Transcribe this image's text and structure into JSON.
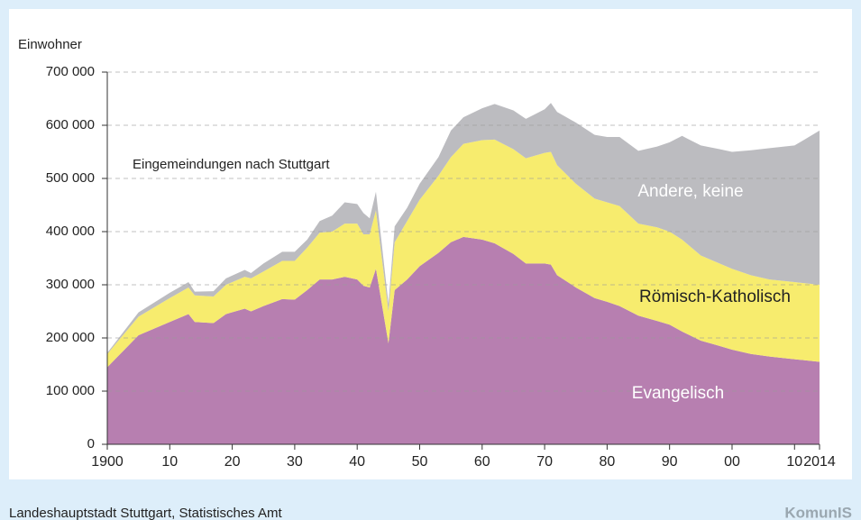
{
  "chart_data": {
    "type": "stacked_area",
    "y_label": "Einwohner",
    "annotation": "Eingemeindungen nach Stuttgart",
    "source": "Landeshauptstadt Stuttgart, Statistisches Amt",
    "logo": "KomunIS",
    "x": [
      1900,
      1905,
      1910,
      1913,
      1914,
      1917,
      1919,
      1922,
      1923,
      1925,
      1928,
      1930,
      1932,
      1934,
      1936,
      1938,
      1940,
      1941,
      1942,
      1943,
      1945,
      1946,
      1948,
      1950,
      1953,
      1955,
      1957,
      1960,
      1962,
      1965,
      1967,
      1970,
      1971,
      1972,
      1975,
      1978,
      1980,
      1982,
      1985,
      1988,
      1990,
      1992,
      1995,
      1998,
      2000,
      2003,
      2006,
      2010,
      2014
    ],
    "series": [
      {
        "name": "Evangelisch",
        "color": "#b77fb0",
        "values": [
          145000,
          205000,
          230000,
          245000,
          230000,
          228000,
          245000,
          255000,
          250000,
          260000,
          273000,
          272000,
          290000,
          310000,
          310000,
          315000,
          310000,
          298000,
          295000,
          330000,
          190000,
          290000,
          310000,
          335000,
          360000,
          380000,
          390000,
          385000,
          378000,
          358000,
          340000,
          340000,
          338000,
          318000,
          295000,
          275000,
          268000,
          260000,
          242000,
          232000,
          225000,
          212000,
          195000,
          185000,
          178000,
          170000,
          165000,
          160000,
          155000
        ]
      },
      {
        "name": "Römisch-Katholisch",
        "color": "#f7ec6e",
        "values": [
          25000,
          35000,
          45000,
          50000,
          50000,
          50000,
          55000,
          60000,
          62000,
          65000,
          72000,
          73000,
          80000,
          88000,
          90000,
          100000,
          105000,
          97000,
          100000,
          110000,
          60000,
          90000,
          110000,
          125000,
          145000,
          160000,
          175000,
          187000,
          195000,
          197000,
          198000,
          208000,
          212000,
          207000,
          195000,
          187000,
          187000,
          188000,
          173000,
          176000,
          175000,
          173000,
          160000,
          155000,
          152000,
          148000,
          145000,
          145000,
          145000
        ]
      },
      {
        "name": "Andere, keine",
        "color": "#bcbcc0",
        "values": [
          2000,
          8000,
          10000,
          10000,
          7000,
          10000,
          12000,
          13000,
          10000,
          15000,
          17000,
          17000,
          15000,
          22000,
          30000,
          40000,
          37000,
          40000,
          30000,
          35000,
          15000,
          30000,
          25000,
          30000,
          35000,
          50000,
          50000,
          60000,
          67000,
          73000,
          74000,
          82000,
          92000,
          100000,
          115000,
          120000,
          123000,
          130000,
          137000,
          152000,
          168000,
          195000,
          207000,
          215000,
          220000,
          235000,
          247000,
          257000,
          290000
        ]
      }
    ],
    "xlim": [
      1900,
      2014
    ],
    "xticks": [
      {
        "value": 1900,
        "label": "1900"
      },
      {
        "value": 1910,
        "label": "10"
      },
      {
        "value": 1920,
        "label": "20"
      },
      {
        "value": 1930,
        "label": "30"
      },
      {
        "value": 1940,
        "label": "40"
      },
      {
        "value": 1950,
        "label": "50"
      },
      {
        "value": 1960,
        "label": "60"
      },
      {
        "value": 1970,
        "label": "70"
      },
      {
        "value": 1980,
        "label": "80"
      },
      {
        "value": 1990,
        "label": "90"
      },
      {
        "value": 2000,
        "label": "00"
      },
      {
        "value": 2010,
        "label": "10"
      },
      2014
    ],
    "ylim": [
      0,
      700000
    ],
    "yticks": [
      0,
      {
        "value": 100000,
        "label": "100 000"
      },
      {
        "value": 200000,
        "label": "200 000"
      },
      {
        "value": 300000,
        "label": "300 000"
      },
      {
        "value": 400000,
        "label": "400 000"
      },
      {
        "value": 500000,
        "label": "500 000"
      },
      {
        "value": 600000,
        "label": "600 000"
      },
      {
        "value": 700000,
        "label": "700 000"
      }
    ],
    "grid": true
  }
}
